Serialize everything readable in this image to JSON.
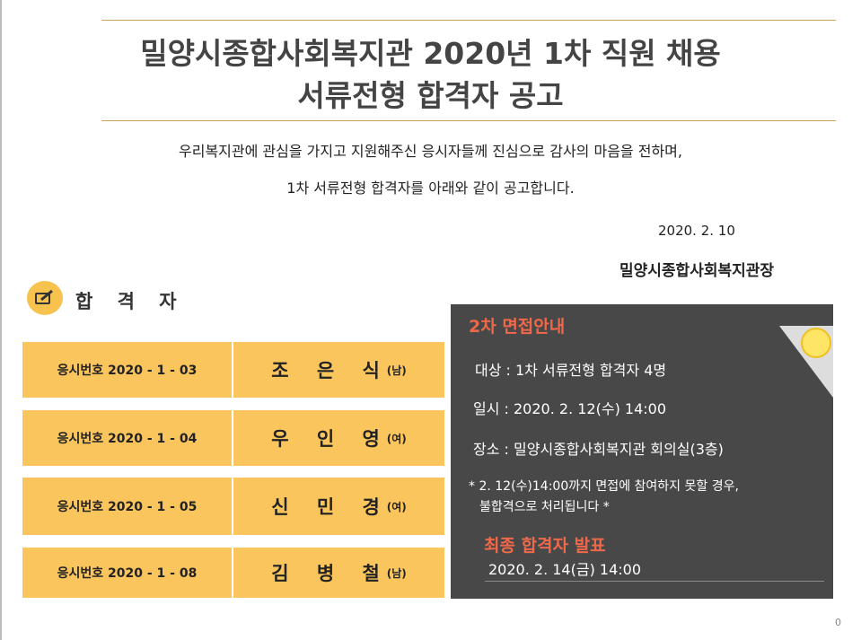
{
  "header": {
    "title_line1": "밀양시종합사회복지관 2020년 1차 직원 채용",
    "title_line2": "서류전형 합격자 공고"
  },
  "intro": {
    "line1": "우리복지관에 관심을 가지고 지원해주신 응시자들께 진심으로 감사의 마음을 전하며,",
    "line2": "1차 서류전형 합격자를 아래와 같이 공고합니다."
  },
  "date": "2020. 2. 10",
  "signer": "밀양시종합사회복지관장",
  "section": {
    "title": "합 격 자",
    "icon": "edit-icon",
    "accent": "#f8c24f"
  },
  "candidates": [
    {
      "id": "응시번호 2020 - 1 - 03",
      "name": "조 은 식",
      "gender": "(남)"
    },
    {
      "id": "응시번호 2020 - 1 - 04",
      "name": "우 인 영",
      "gender": "(여)"
    },
    {
      "id": "응시번호 2020 - 1 - 05",
      "name": "신 민 경",
      "gender": "(여)"
    },
    {
      "id": "응시번호 2020 - 1 - 08",
      "name": "김 병 철",
      "gender": "(남)"
    }
  ],
  "interview": {
    "title": "2차 면접안내",
    "target": "대상 : 1차 서류전형 합격자 4명",
    "datetime": "일시 : 2020. 2. 12(수) 14:00",
    "place": "장소  : 밀양시종합사회복지관 회의실(3층)",
    "note1": "* 2. 12(수)14:00까지 면접에 참여하지 못할 경우,",
    "note2": "불합격으로 처리됩니다 *",
    "final_title": "최종 합격자 발표",
    "final_date": "2020. 2. 14(금) 14:00",
    "accent": "#f0684a"
  },
  "page_number": "0"
}
